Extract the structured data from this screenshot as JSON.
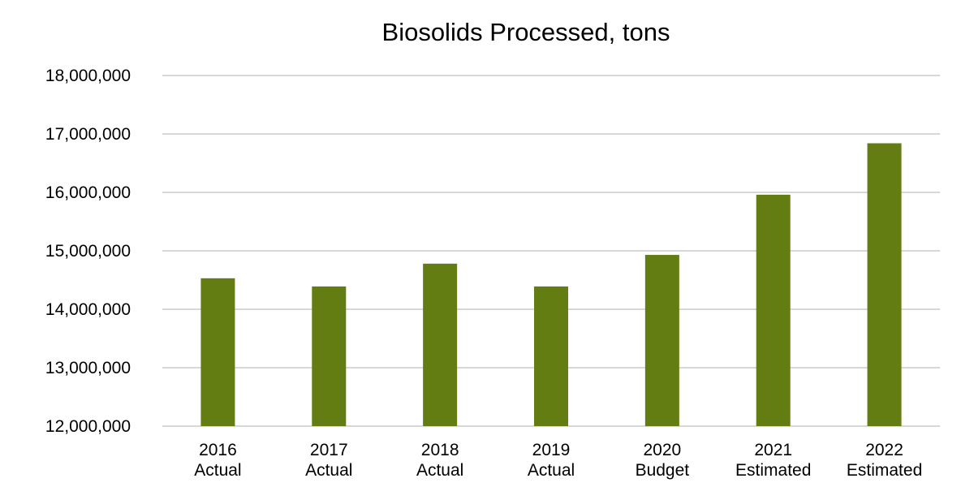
{
  "chart_data": {
    "type": "bar",
    "title": "Biosolids Processed, tons",
    "xlabel": "",
    "ylabel": "",
    "categories": [
      [
        "2016",
        "Actual"
      ],
      [
        "2017",
        "Actual"
      ],
      [
        "2018",
        "Actual"
      ],
      [
        "2019",
        "Actual"
      ],
      [
        "2020",
        "Budget"
      ],
      [
        "2021",
        "Estimated"
      ],
      [
        "2022",
        "Estimated"
      ]
    ],
    "values": [
      14530000,
      14390000,
      14780000,
      14390000,
      14930000,
      15960000,
      16840000
    ],
    "ylim": [
      12000000,
      18000000
    ],
    "yticks": [
      {
        "value": 12000000,
        "label": "12,000,000"
      },
      {
        "value": 13000000,
        "label": "13,000,000"
      },
      {
        "value": 14000000,
        "label": "14,000,000"
      },
      {
        "value": 15000000,
        "label": "15,000,000"
      },
      {
        "value": 16000000,
        "label": "16,000,000"
      },
      {
        "value": 17000000,
        "label": "17,000,000"
      },
      {
        "value": 18000000,
        "label": "18,000,000"
      }
    ],
    "grid": true,
    "legend": "none",
    "colors": {
      "bar": "#647d12",
      "grid": "#bfbfbf"
    }
  }
}
